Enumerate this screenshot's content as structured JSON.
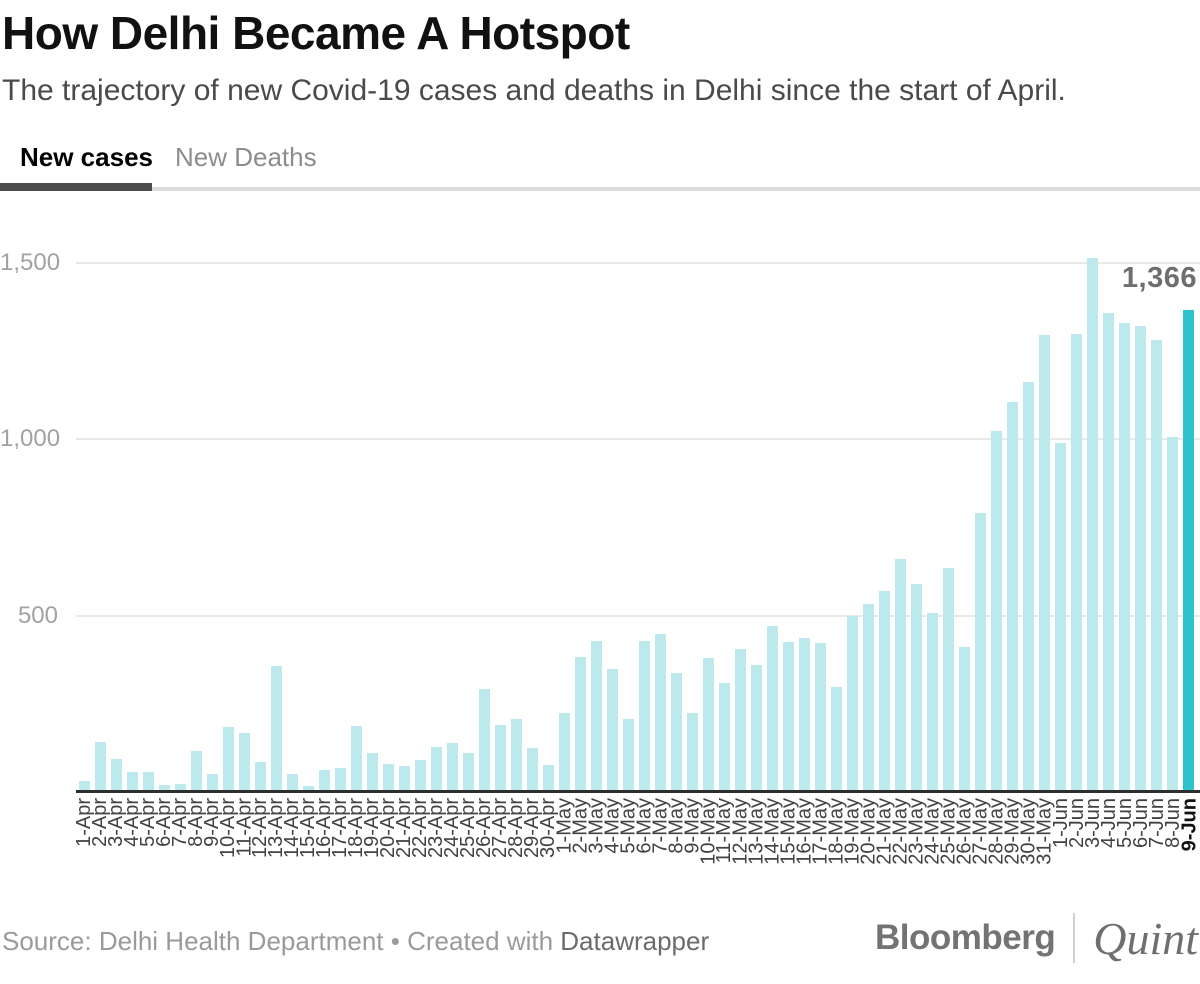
{
  "header": {
    "title": "How Delhi Became A Hotspot",
    "subtitle": "The trajectory of new Covid-19 cases and deaths in Delhi since the start of April."
  },
  "tabs": [
    {
      "label": "New cases",
      "active": true
    },
    {
      "label": "New Deaths",
      "active": false
    }
  ],
  "chart_data": {
    "type": "bar",
    "title": "How Delhi Became A Hotspot",
    "xlabel": "",
    "ylabel": "",
    "ylim": [
      0,
      1600
    ],
    "grid": "horizontal",
    "yticks": [
      500,
      1000,
      1500
    ],
    "ytick_labels": [
      "500",
      "1,000",
      "1,500"
    ],
    "categories": [
      "1-Apr",
      "2-Apr",
      "3-Apr",
      "4-Apr",
      "5-Apr",
      "6-Apr",
      "7-Apr",
      "8-Apr",
      "9-Apr",
      "10-Apr",
      "11-Apr",
      "12-Apr",
      "13-Apr",
      "14-Apr",
      "15-Apr",
      "16-Apr",
      "17-Apr",
      "18-Apr",
      "19-Apr",
      "20-Apr",
      "21-Apr",
      "22-Apr",
      "23-Apr",
      "24-Apr",
      "25-Apr",
      "26-Apr",
      "27-Apr",
      "28-Apr",
      "29-Apr",
      "30-Apr",
      "1-May",
      "2-May",
      "3-May",
      "4-May",
      "5-May",
      "6-May",
      "7-May",
      "8-May",
      "9-May",
      "10-May",
      "11-May",
      "12-May",
      "13-May",
      "14-May",
      "15-May",
      "16-May",
      "17-May",
      "18-May",
      "19-May",
      "20-May",
      "21-May",
      "22-May",
      "23-May",
      "24-May",
      "25-May",
      "26-May",
      "27-May",
      "28-May",
      "29-May",
      "30-May",
      "31-May",
      "1-Jun",
      "2-Jun",
      "3-Jun",
      "4-Jun",
      "5-Jun",
      "6-Jun",
      "7-Jun",
      "8-Jun",
      "9-Jun"
    ],
    "values": [
      32,
      141,
      93,
      58,
      58,
      20,
      24,
      117,
      51,
      183,
      166,
      85,
      356,
      51,
      17,
      62,
      67,
      186,
      110,
      78,
      75,
      92,
      128,
      138,
      111,
      293,
      190,
      206,
      125,
      76,
      223,
      384,
      427,
      349,
      206,
      428,
      448,
      338,
      224,
      381,
      310,
      406,
      359,
      472,
      425,
      438,
      422,
      299,
      500,
      534,
      571,
      660,
      591,
      508,
      635,
      412,
      792,
      1024,
      1106,
      1163,
      1295,
      990,
      1298,
      1513,
      1359,
      1330,
      1320,
      1282,
      1007,
      1366
    ],
    "highlight_index": 69,
    "annotation": {
      "label": "1,366",
      "index": 69
    },
    "colors": {
      "bar": "#bce9eb",
      "highlight": "#2ec3cc",
      "axis": "#2e2e2e",
      "gridline": "#e9e9e9"
    },
    "legend": "none"
  },
  "footer": {
    "source_prefix": "Source: ",
    "source": "Delhi Health Department",
    "separator": " • ",
    "created_with": "Created with ",
    "tool": "Datawrapper",
    "logo_primary": "Bloomberg",
    "logo_secondary": "Quint"
  }
}
